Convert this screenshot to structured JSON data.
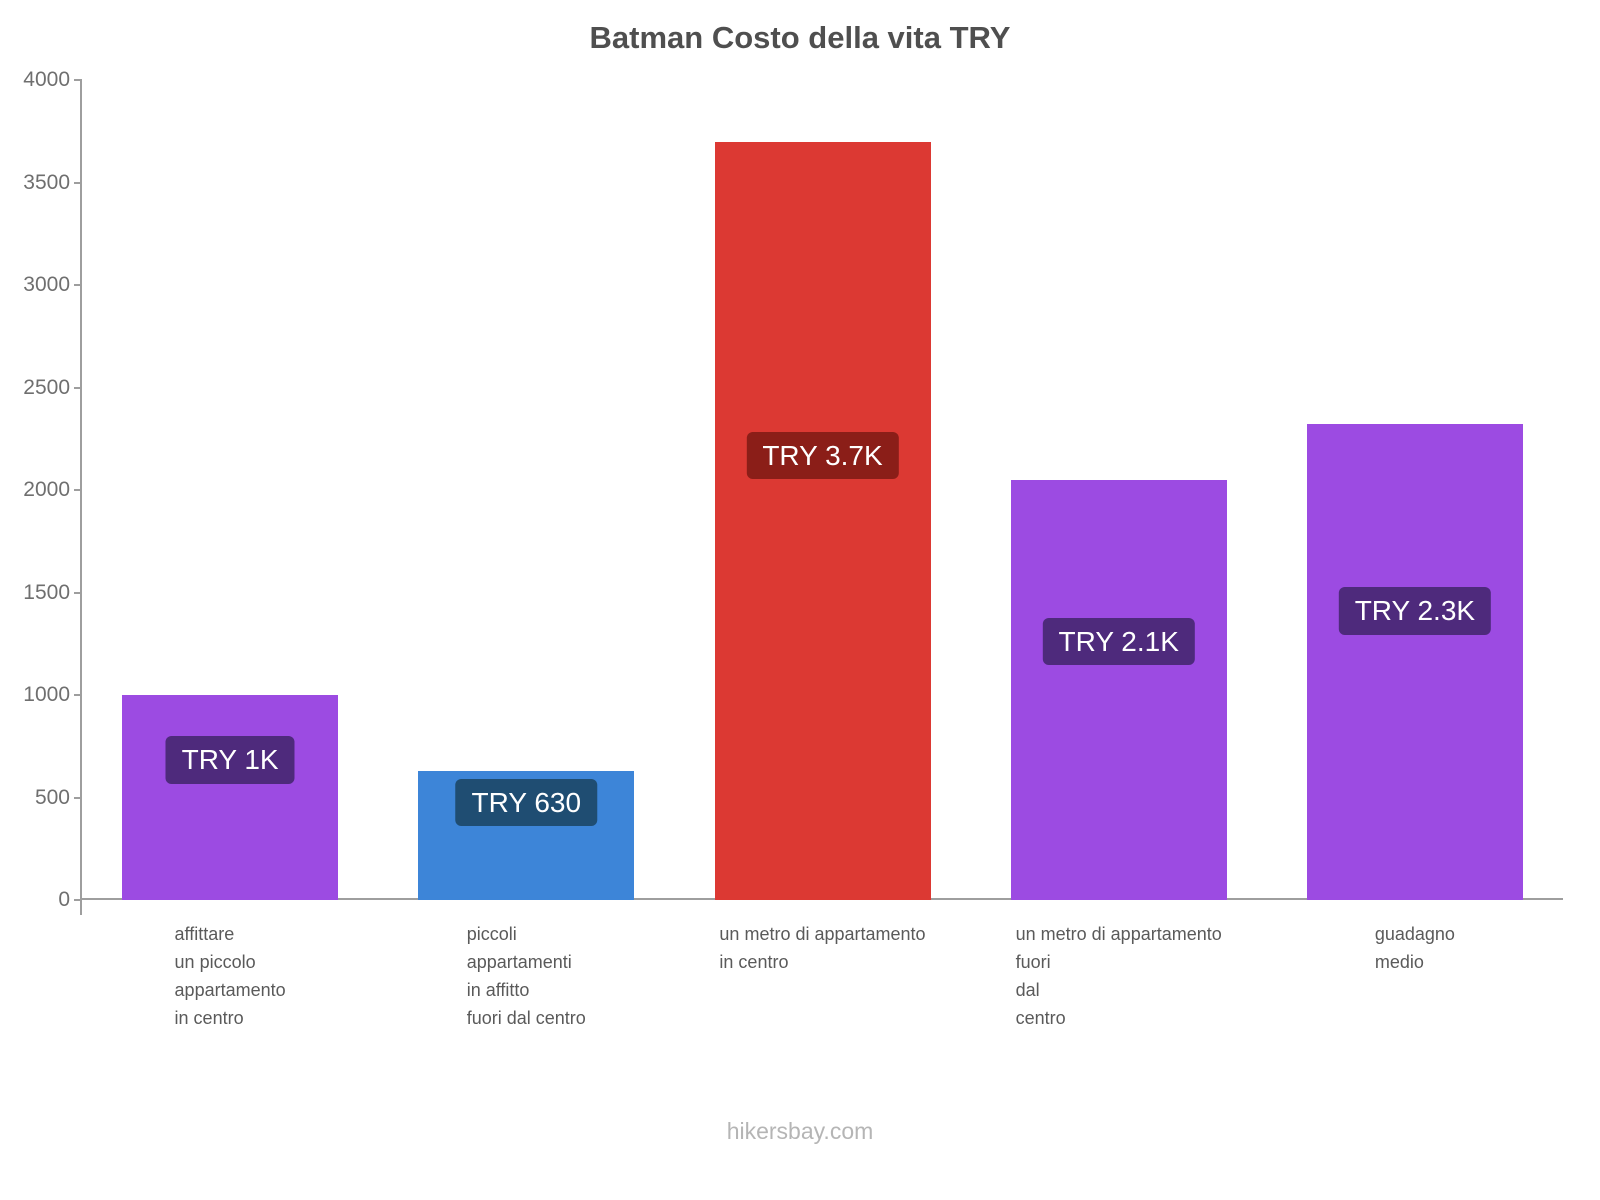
{
  "chart_data": {
    "type": "bar",
    "title": "Batman Costo della vita TRY",
    "footer": "hikersbay.com",
    "xlabel": "",
    "ylabel": "",
    "ylim": [
      0,
      4000
    ],
    "yticks": [
      0,
      500,
      1000,
      1500,
      2000,
      2500,
      3000,
      3500,
      4000
    ],
    "grid": false,
    "legend": false,
    "categories": [
      "affittare\nun piccolo\nappartamento\nin centro",
      "piccoli\nappartamenti\nin affitto\nfuori dal centro",
      "un metro di appartamento\nin centro",
      "un metro di appartamento\nfuori\ndal\ncentro",
      "guadagno\nmedio"
    ],
    "values": [
      1000,
      630,
      3700,
      2050,
      2320
    ],
    "value_labels": [
      "TRY 1K",
      "TRY 630",
      "TRY 3.7K",
      "TRY 2.1K",
      "TRY 2.3K"
    ],
    "bar_colors": [
      "#9c4be2",
      "#3d85d8",
      "#dc3933",
      "#9c4be2",
      "#9c4be2"
    ],
    "label_bg_colors": [
      "#4e2a7c",
      "#1f4d72",
      "#8b1e18",
      "#4e2a7c",
      "#4e2a7c"
    ],
    "axis_color": "#9e9e9e",
    "currency": "TRY"
  }
}
